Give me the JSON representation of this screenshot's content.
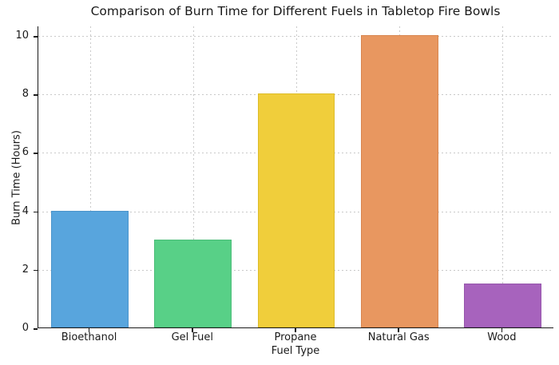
{
  "chart_data": {
    "type": "bar",
    "title": "Comparison of Burn Time for Different Fuels in Tabletop Fire Bowls",
    "xlabel": "Fuel Type",
    "ylabel": "Burn Time (Hours)",
    "categories": [
      "Bioethanol",
      "Gel Fuel",
      "Propane",
      "Natural Gas",
      "Wood"
    ],
    "values": [
      4,
      3,
      8,
      10,
      1.5
    ],
    "bar_colors": [
      "#58a5dd",
      "#58d087",
      "#f0ce3b",
      "#e89760",
      "#a763bd"
    ],
    "bar_edge_colors": [
      "#4a94cb",
      "#4bbd78",
      "#ddbc28",
      "#d8864f",
      "#9656ac"
    ],
    "yticks": [
      0,
      2,
      4,
      6,
      8,
      10
    ],
    "ylim": [
      0,
      10.33
    ],
    "bar_width_fraction": 0.75,
    "grid": {
      "style": "dotted",
      "color": "#c9c9c9",
      "visible": true
    },
    "legend": "none",
    "background_color": "#ffffff",
    "axis_color": "#1a1a1a",
    "text_color": "#1a1a1a"
  }
}
